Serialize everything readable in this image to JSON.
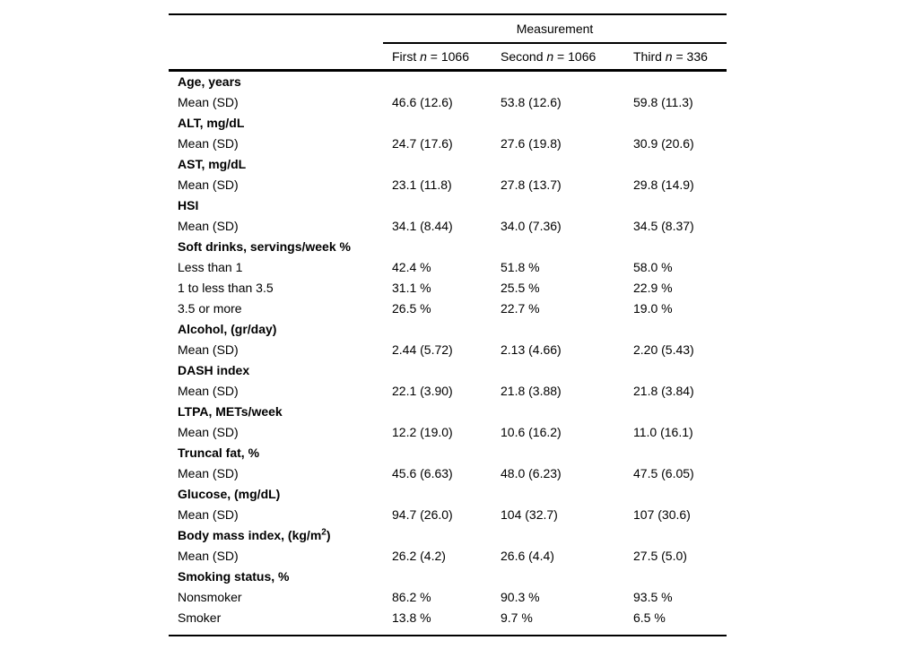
{
  "table": {
    "title": "Measurement",
    "columns": [
      {
        "pre": "First ",
        "n": "n",
        "count": " = 1066"
      },
      {
        "pre": "Second ",
        "n": "n",
        "count": " = 1066"
      },
      {
        "pre": "Third ",
        "n": "n",
        "count": " = 336"
      }
    ],
    "rows": [
      {
        "label": "Age, years"
      },
      {
        "label": "Mean (SD)",
        "c1": "46.6 (12.6)",
        "c2": "53.8 (12.6)",
        "c3": "59.8 (11.3)"
      },
      {
        "label": "ALT, mg/dL"
      },
      {
        "label": "Mean (SD)",
        "c1": "24.7 (17.6)",
        "c2": "27.6 (19.8)",
        "c3": "30.9 (20.6)"
      },
      {
        "label": "AST, mg/dL"
      },
      {
        "label": "Mean (SD)",
        "c1": "23.1 (11.8)",
        "c2": "27.8 (13.7)",
        "c3": "29.8 (14.9)"
      },
      {
        "label": "HSI"
      },
      {
        "label": "Mean (SD)",
        "c1": "34.1 (8.44)",
        "c2": "34.0 (7.36)",
        "c3": "34.5 (8.37)"
      },
      {
        "label": "Soft drinks, servings/week %"
      },
      {
        "label": "Less than 1",
        "c1": "42.4 %",
        "c2": "51.8 %",
        "c3": "58.0 %"
      },
      {
        "label": "1 to less than 3.5",
        "c1": "31.1 %",
        "c2": "25.5 %",
        "c3": "22.9 %"
      },
      {
        "label": "3.5 or more",
        "c1": "26.5 %",
        "c2": "22.7 %",
        "c3": "19.0 %"
      },
      {
        "label": "Alcohol, (gr/day)"
      },
      {
        "label": "Mean (SD)",
        "c1": "2.44 (5.72)",
        "c2": "2.13 (4.66)",
        "c3": "2.20 (5.43)"
      },
      {
        "label": "DASH index"
      },
      {
        "label": "Mean (SD)",
        "c1": "22.1 (3.90)",
        "c2": "21.8 (3.88)",
        "c3": "21.8 (3.84)"
      },
      {
        "label": "LTPA, METs/week"
      },
      {
        "label": "Mean (SD)",
        "c1": "12.2 (19.0)",
        "c2": "10.6 (16.2)",
        "c3": "11.0 (16.1)"
      },
      {
        "label": "Truncal fat, %"
      },
      {
        "label": "Mean (SD)",
        "c1": "45.6 (6.63)",
        "c2": "48.0 (6.23)",
        "c3": "47.5 (6.05)"
      },
      {
        "label": "Glucose, (mg/dL)"
      },
      {
        "label": "Mean (SD)",
        "c1": "94.7 (26.0)",
        "c2": "104 (32.7)",
        "c3": "107 (30.6)"
      },
      {
        "label_pre": "Body mass index, (kg/m",
        "label_sup": "2",
        "label_post": ")"
      },
      {
        "label": "Mean (SD)",
        "c1": "26.2 (4.2)",
        "c2": "26.6 (4.4)",
        "c3": "27.5 (5.0)"
      },
      {
        "label": "Smoking status, %"
      },
      {
        "label": "Nonsmoker",
        "c1": "86.2 %",
        "c2": "90.3 %",
        "c3": "93.5 %"
      },
      {
        "label": "Smoker",
        "c1": "13.8 %",
        "c2": "9.7 %",
        "c3": "6.5 %"
      }
    ]
  }
}
